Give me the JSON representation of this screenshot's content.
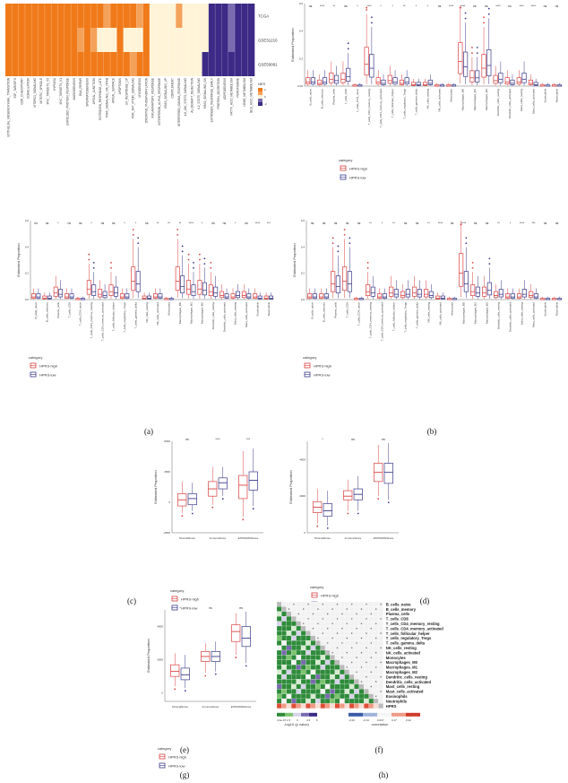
{
  "panel_labels": [
    "(a)",
    "(b)",
    "(c)",
    "(d)",
    "(e)",
    "(f)",
    "(g)",
    "(h)"
  ],
  "legend": {
    "category_title": "category",
    "high_label": "HPRS-high",
    "low_label": "HPRS-low",
    "high_color": "#d94040",
    "low_color": "#3a3a8c"
  },
  "chart_data": [
    {
      "panel": "a",
      "type": "heatmap",
      "rows": [
        "TCGA",
        "GSE31210",
        "GSE50081"
      ],
      "columns": [
        "EPITHELIAL_MESENCHYMAL_TRANSITION",
        "E2F_TARGETS",
        "G2M_CHECKPOINT",
        "COAGULATION",
        "MTORC1_SIGNALING",
        "MITOTIC_SPINDLE",
        "MYC_TARGETS_V2",
        "HYPOXIA",
        "MYC_TARGETS_V1",
        "UNFOLDED_PROTEIN_RESPONSE",
        "ANGIOGENESIS",
        "DNA_REPAIR",
        "SPERMATOGENESIS",
        "APICAL_JUNCTION",
        "ESTROGEN_RESPONSE_LATE",
        "TNFA_SIGNALING_VIA_NFKB",
        "APICAL_SURFACE",
        "APOPTOSIS",
        "UV_RESPONSE_UP",
        "PI3K_AKT_MTOR_SIGNALING",
        "MYOGENESIS",
        "OXIDATIVE_PHOSPHORYLATION",
        "INFLAMMATORY_RESPONSE",
        "INTERFERON_ALPHA_RESPONSE",
        "KRAS_SIGNALING_UP",
        "COMPLEMENT",
        "INTERFERON_GAMMA_RESPONSE",
        "IL6_JAK_STAT3_SIGNALING",
        "ALLOGRAFT_REJECTION",
        "IL2_STAT5_SIGNALING",
        "KRAS_SIGNALING_DN",
        "ESTROGEN_RESPONSE_EARLY",
        "PROTEIN_SECRETION",
        "ADIPOGENESIS",
        "FATTY_ACID_METABOLISM",
        "PEROXISOME",
        "HEME_METABOLISM",
        "BILE_ACID_METABOLISM"
      ],
      "values": [
        [
          2,
          2,
          2,
          2,
          2,
          2,
          2,
          2,
          2,
          2,
          2,
          2,
          2,
          2,
          2,
          1,
          2,
          2,
          2,
          2,
          1,
          2,
          0,
          0,
          0,
          0,
          1,
          0,
          0,
          0,
          0,
          -2,
          -2,
          -2,
          -1,
          -2,
          -2,
          -2
        ],
        [
          2,
          2,
          2,
          2,
          2,
          2,
          2,
          2,
          2,
          2,
          2,
          1,
          2,
          1,
          0,
          0,
          0,
          2,
          0,
          0,
          0,
          2,
          0,
          0,
          0,
          0,
          0,
          0,
          0,
          0,
          0,
          -2,
          -2,
          -2,
          -1,
          -2,
          -2,
          -2
        ],
        [
          2,
          2,
          2,
          2,
          2,
          2,
          2,
          2,
          2,
          2,
          2,
          2,
          2,
          2,
          2,
          2,
          2,
          2,
          2,
          1,
          2,
          2,
          0,
          0,
          0,
          0,
          0,
          0,
          0,
          0,
          -2,
          -2,
          -2,
          -2,
          -2,
          -2,
          -2,
          -2
        ]
      ],
      "legend": {
        "title": "NES",
        "ticks": [
          "2",
          "0",
          "-2"
        ]
      }
    },
    {
      "panel": "b",
      "type": "box",
      "ylabel": "Estimated Proportion",
      "yticks": [
        "0.00",
        "0.2",
        "0.4",
        "0.6"
      ],
      "ylim": [
        0,
        0.6
      ],
      "categories": [
        "B_cells_naive",
        "B_cells_memory",
        "Plasma_cells",
        "T_cells_CD8",
        "T_cells_CD4_naive",
        "T_cells_CD4_memory_resting",
        "T_cells_CD4_memory_activated",
        "T_cells_follicular_helper",
        "T_cells_regulatory_Tregs",
        "T_cells_gamma_delta",
        "NK_cells_resting",
        "NK_cells_activated",
        "Monocytes",
        "Macrophages_M0",
        "Macrophages_M1",
        "Macrophages_M2",
        "Dendritic_cells_resting",
        "Dendritic_cells_activated",
        "Mast_cells_resting",
        "Mast_cells_activated",
        "Eosinophils",
        "Neutrophils"
      ],
      "significance": [
        "ns",
        "****",
        "**",
        "ns",
        "*",
        "****",
        "*",
        "*",
        "**",
        "*",
        "*",
        "ns",
        "****",
        "****",
        "ns",
        "ns",
        "****",
        "ns",
        "****",
        "****",
        "ns",
        "ns"
      ],
      "series": [
        {
          "name": "HPRS-high",
          "medians": [
            0.03,
            0.02,
            0.05,
            0.05,
            0.0,
            0.16,
            0.03,
            0.04,
            0.02,
            0.01,
            0.01,
            0.0,
            0.0,
            0.18,
            0.06,
            0.13,
            0.04,
            0.03,
            0.03,
            0.02,
            0.0,
            0.0
          ]
        },
        {
          "name": "HPRS-low",
          "medians": [
            0.03,
            0.03,
            0.04,
            0.07,
            0.0,
            0.13,
            0.02,
            0.03,
            0.03,
            0.01,
            0.02,
            0.0,
            0.0,
            0.14,
            0.06,
            0.15,
            0.05,
            0.02,
            0.05,
            0.01,
            0.0,
            0.0
          ]
        }
      ]
    },
    {
      "panel": "c",
      "type": "box",
      "ylabel": "Estimated Proportion",
      "yticks": [
        "0.0",
        "0.2",
        "0.4",
        "0.6"
      ],
      "ylim": [
        0,
        0.6
      ],
      "categories": [
        "B_cells_naive",
        "B_cells_memory",
        "Plasma_cells",
        "T_cells_CD8",
        "T_cells_CD4_naive",
        "T_cells_CD4_memory_resting",
        "T_cells_CD4_memory_activated",
        "T_cells_follicular_helper",
        "T_cells_regulatory_Tregs",
        "T_cells_gamma_delta",
        "NK_cells_resting",
        "NK_cells_activated",
        "Monocytes",
        "Macrophages_M0",
        "Macrophages_M1",
        "Macrophages_M2",
        "Dendritic_cells_resting",
        "Dendritic_cells_activated",
        "Mast_cells_resting",
        "Mast_cells_activated",
        "Eosinophils",
        "Neutrophils"
      ],
      "significance": [
        "ns",
        "ns",
        "*",
        "ns",
        "ns",
        "*",
        "ns",
        "ns",
        "*",
        "*",
        "ns",
        "**",
        "**",
        "**",
        "****",
        "*",
        "ns",
        "ns",
        "*",
        "ns",
        "****",
        "***"
      ],
      "series": [
        {
          "name": "HPRS-high",
          "medians": [
            0.02,
            0.01,
            0.05,
            0.02,
            0.0,
            0.08,
            0.04,
            0.06,
            0.02,
            0.14,
            0.01,
            0.02,
            0.0,
            0.14,
            0.08,
            0.08,
            0.06,
            0.03,
            0.02,
            0.03,
            0.02,
            0.01
          ]
        },
        {
          "name": "HPRS-low",
          "medians": [
            0.02,
            0.01,
            0.04,
            0.02,
            0.0,
            0.06,
            0.03,
            0.05,
            0.02,
            0.12,
            0.01,
            0.02,
            0.0,
            0.1,
            0.06,
            0.07,
            0.05,
            0.02,
            0.03,
            0.02,
            0.01,
            0.01
          ]
        }
      ]
    },
    {
      "panel": "d",
      "type": "box",
      "ylabel": "Estimated Proportion",
      "yticks": [
        "0.0",
        "0.2",
        "0.4",
        "0.6"
      ],
      "ylim": [
        0,
        0.6
      ],
      "categories": [
        "B_cells_naive",
        "B_cells_memory",
        "Plasma_cells",
        "T_cells_CD8",
        "T_cells_CD4_naive",
        "T_cells_CD4_memory_resting",
        "T_cells_CD4_memory_activated",
        "T_cells_follicular_helper",
        "T_cells_regulatory_Tregs",
        "T_cells_gamma_delta",
        "NK_cells_resting",
        "NK_cells_activated",
        "Monocytes",
        "Macrophages_M0",
        "Macrophages_M1",
        "Macrophages_M2",
        "Dendritic_cells_resting",
        "Dendritic_cells_activated",
        "Mast_cells_resting",
        "Mast_cells_activated",
        "Eosinophils",
        "Neutrophils"
      ],
      "significance": [
        "ns",
        "ns",
        "ns",
        "ns",
        "ns",
        "**",
        "*",
        "**",
        "ns",
        "ns",
        "**",
        "****",
        "ns",
        "****",
        "ns",
        "ns",
        "**",
        "*",
        "****",
        "***",
        "ns",
        "ns"
      ],
      "series": [
        {
          "name": "HPRS-high",
          "medians": [
            0.02,
            0.02,
            0.12,
            0.14,
            0.0,
            0.06,
            0.02,
            0.05,
            0.03,
            0.05,
            0.04,
            0.01,
            0.0,
            0.2,
            0.06,
            0.05,
            0.03,
            0.02,
            0.02,
            0.03,
            0.0,
            0.0
          ]
        },
        {
          "name": "HPRS-low",
          "medians": [
            0.02,
            0.02,
            0.1,
            0.12,
            0.0,
            0.05,
            0.02,
            0.04,
            0.04,
            0.04,
            0.03,
            0.01,
            0.0,
            0.12,
            0.05,
            0.07,
            0.04,
            0.02,
            0.04,
            0.02,
            0.0,
            0.0
          ]
        }
      ]
    },
    {
      "panel": "e",
      "type": "box",
      "ylabel": "Estimated Proportion",
      "yticks": [
        "5000",
        "2500",
        "0",
        "-2500"
      ],
      "ylim": [
        -2500,
        5000
      ],
      "categories": [
        "StromalScore",
        "ImmuneScore",
        "ESTIMATEScore"
      ],
      "significance": [
        "ns",
        "****",
        "***"
      ],
      "series": [
        {
          "name": "HPRS-high",
          "q": [
            [
              -900,
              -300,
              200,
              700,
              1700
            ],
            [
              -200,
              500,
              1100,
              1700,
              2900
            ],
            [
              -1200,
              300,
              1400,
              2200,
              4200
            ]
          ]
        },
        {
          "name": "HPRS-low",
          "q": [
            [
              -700,
              -200,
              300,
              700,
              1600
            ],
            [
              500,
              1100,
              1600,
              2000,
              2900
            ],
            [
              -300,
              1000,
              1800,
              2500,
              4400
            ]
          ]
        }
      ]
    },
    {
      "panel": "f",
      "type": "box",
      "ylabel": "Estimated Proportion",
      "yticks": [
        "4000",
        "2000",
        "0"
      ],
      "ylim": [
        0,
        5000
      ],
      "categories": [
        "StromalScore",
        "ImmuneScore",
        "ESTIMATEScore"
      ],
      "significance": [
        "*",
        "ns",
        "ns"
      ],
      "series": [
        {
          "name": "HPRS-high",
          "q": [
            [
              500,
              1100,
              1400,
              1700,
              2400
            ],
            [
              1200,
              1800,
              2000,
              2300,
              2900
            ],
            [
              2000,
              2800,
              3300,
              3800,
              4800
            ]
          ]
        },
        {
          "name": "HPRS-low",
          "q": [
            [
              400,
              900,
              1200,
              1600,
              2300
            ],
            [
              1200,
              1800,
              2100,
              2400,
              3100
            ],
            [
              1800,
              2700,
              3300,
              3800,
              4900
            ]
          ]
        }
      ]
    },
    {
      "panel": "g",
      "type": "box",
      "ylabel": "Estimated Proportion",
      "yticks": [
        "4000",
        "2000",
        "0"
      ],
      "ylim": [
        -500,
        5000
      ],
      "categories": [
        "StromalScore",
        "ImmuneScore",
        "ESTIMATEScore"
      ],
      "significance": [
        "*",
        "ns",
        "ns"
      ],
      "series": [
        {
          "name": "HPRS-high",
          "q": [
            [
              400,
              1000,
              1300,
              1700,
              2400
            ],
            [
              1200,
              1900,
              2200,
              2500,
              3000
            ],
            [
              2300,
              3100,
              3700,
              4100,
              4800
            ]
          ]
        },
        {
          "name": "HPRS-low",
          "q": [
            [
              300,
              800,
              1100,
              1500,
              2300
            ],
            [
              1300,
              1900,
              2200,
              2500,
              3100
            ],
            [
              1800,
              2800,
              3300,
              4000,
              4900
            ]
          ]
        }
      ]
    },
    {
      "panel": "h",
      "type": "heatmap",
      "rows": [
        "B_cells_naive",
        "B_cells_memory",
        "Plasma_cells",
        "T_cells_CD8",
        "T_cells_CD4_memory_resting",
        "T_cells_CD4_memory_activated",
        "T_cells_follicular_helper",
        "T_cells_regulatory_Tregs",
        "T_cells_gamma_delta",
        "NK_cells_resting",
        "NK_cells_activated",
        "Monocytes",
        "Macrophages_M0",
        "Macrophages_M1",
        "Macrophages_M2",
        "Dendritic_cells_resting",
        "Dendritic_cells_activated",
        "Mast_cells_resting",
        "Mast_cells_activated",
        "Eosinophils",
        "Neutrophils",
        "HPRS"
      ],
      "highlight_row": "HPRS",
      "legend_left": {
        "title": "-log10 (p value)",
        "ticks": [
          "4.3e-07",
          "1.5",
          "3",
          "4.5",
          "6"
        ]
      },
      "legend_right": {
        "title": "correlation",
        "ticks": [
          "-0.26",
          "-0.13",
          "0.037",
          "0.17",
          "0.32"
        ]
      }
    }
  ]
}
